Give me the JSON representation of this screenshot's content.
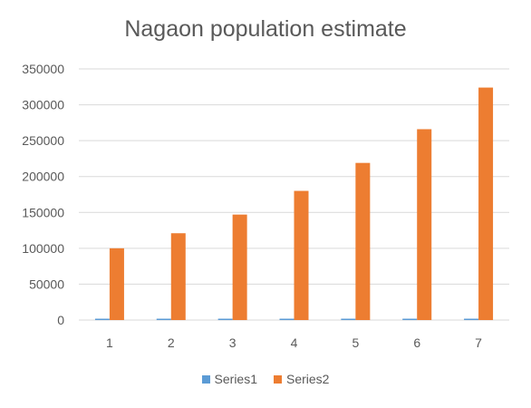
{
  "chart_data": {
    "type": "bar",
    "title": "Nagaon population estimate",
    "xlabel": "",
    "ylabel": "",
    "categories": [
      "1",
      "2",
      "3",
      "4",
      "5",
      "6",
      "7"
    ],
    "series": [
      {
        "name": "Series1",
        "color": "#5B9BD5",
        "values": [
          1,
          2,
          3,
          4,
          5,
          6,
          7
        ]
      },
      {
        "name": "Series2",
        "color": "#ED7D31",
        "values": [
          100000,
          121000,
          147000,
          180000,
          219000,
          266000,
          324000
        ]
      }
    ],
    "ylim": [
      0,
      350000
    ],
    "yticks": [
      0,
      50000,
      100000,
      150000,
      200000,
      250000,
      300000,
      350000
    ],
    "ytick_labels": [
      "0",
      "50000",
      "100000",
      "150000",
      "200000",
      "250000",
      "300000",
      "350000"
    ],
    "grid": true,
    "legend_position": "bottom"
  }
}
